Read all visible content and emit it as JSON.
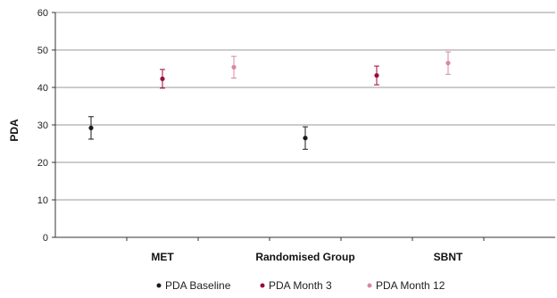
{
  "chart_data": {
    "type": "scatter",
    "ylabel": "PDA",
    "ylim": [
      0,
      60
    ],
    "yticks": [
      0,
      10,
      20,
      30,
      40,
      50,
      60
    ],
    "grid": true,
    "legend_position": "bottom",
    "categories": [
      "MET",
      "Randomised Group",
      "SBNT"
    ],
    "series": [
      {
        "name": "PDA Baseline",
        "color": "#1a1a1a",
        "points": [
          {
            "x": "MET",
            "y": 29.2,
            "low": 26.2,
            "high": 32.2
          },
          {
            "x": "SBNT",
            "y": 26.5,
            "low": 23.5,
            "high": 29.5
          }
        ]
      },
      {
        "name": "PDA Month 3",
        "color": "#9b0a3f",
        "points": [
          {
            "x": "MET",
            "y": 42.3,
            "low": 39.8,
            "high": 44.8
          },
          {
            "x": "SBNT",
            "y": 43.2,
            "low": 40.7,
            "high": 45.7
          }
        ]
      },
      {
        "name": "PDA Month 12",
        "color": "#d9899e",
        "points": [
          {
            "x": "MET",
            "y": 45.4,
            "low": 42.5,
            "high": 48.3
          },
          {
            "x": "SBNT",
            "y": 46.5,
            "low": 43.5,
            "high": 49.5
          }
        ]
      }
    ]
  }
}
